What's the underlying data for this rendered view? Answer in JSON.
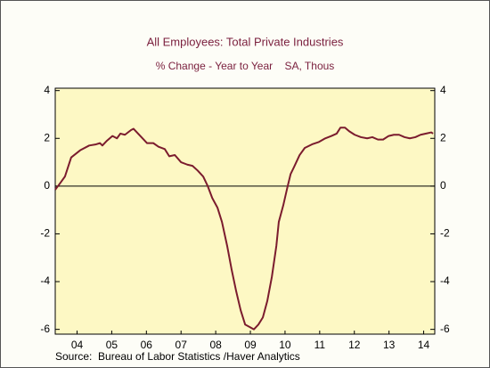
{
  "chart_data": {
    "type": "line",
    "title": "All Employees: Total Private Industries",
    "subtitle": "% Change - Year to Year    SA, Thous",
    "source": "Source:  Bureau of Labor Statistics /Haver Analytics",
    "color": "#7b1c2e",
    "x": [
      2003.87,
      2004.0,
      2004.15,
      2004.33,
      2004.59,
      2004.85,
      2005.05,
      2005.16,
      2005.23,
      2005.36,
      2005.52,
      2005.65,
      2005.75,
      2005.88,
      2006.06,
      2006.13,
      2006.26,
      2006.39,
      2006.52,
      2006.7,
      2006.85,
      2007.03,
      2007.16,
      2007.32,
      2007.5,
      2007.68,
      2007.83,
      2007.98,
      2008.14,
      2008.27,
      2008.4,
      2008.55,
      2008.68,
      2008.83,
      2008.96,
      2009.09,
      2009.22,
      2009.35,
      2009.48,
      2009.6,
      2009.73,
      2009.86,
      2009.99,
      2010.12,
      2010.25,
      2010.32,
      2010.45,
      2010.56,
      2010.66,
      2010.76,
      2010.92,
      2011.07,
      2011.28,
      2011.48,
      2011.66,
      2011.84,
      2011.99,
      2012.1,
      2012.23,
      2012.35,
      2012.51,
      2012.69,
      2012.87,
      2013.02,
      2013.18,
      2013.33,
      2013.49,
      2013.64,
      2013.79,
      2013.95,
      2014.1,
      2014.26,
      2014.41,
      2014.57,
      2014.72,
      2014.77
    ],
    "values": [
      -0.15,
      0.1,
      0.4,
      1.2,
      1.5,
      1.7,
      1.75,
      1.8,
      1.7,
      1.9,
      2.1,
      2.0,
      2.2,
      2.15,
      2.35,
      2.4,
      2.2,
      2.0,
      1.8,
      1.8,
      1.65,
      1.55,
      1.25,
      1.3,
      1.0,
      0.9,
      0.85,
      0.65,
      0.4,
      0.0,
      -0.5,
      -0.9,
      -1.5,
      -2.5,
      -3.5,
      -4.4,
      -5.2,
      -5.8,
      -5.9,
      -6.0,
      -5.8,
      -5.5,
      -4.8,
      -3.8,
      -2.5,
      -1.5,
      -0.8,
      -0.1,
      0.5,
      0.8,
      1.3,
      1.6,
      1.75,
      1.85,
      2.0,
      2.1,
      2.2,
      2.45,
      2.45,
      2.3,
      2.15,
      2.05,
      2.0,
      2.05,
      1.95,
      1.95,
      2.1,
      2.15,
      2.15,
      2.05,
      2.0,
      2.05,
      2.15,
      2.2,
      2.25,
      2.2
    ],
    "xlim": [
      2003.87,
      2014.82
    ],
    "xticks": [
      {
        "value": 2004.5,
        "label": "04"
      },
      {
        "value": 2005.5,
        "label": "05"
      },
      {
        "value": 2006.5,
        "label": "06"
      },
      {
        "value": 2007.5,
        "label": "07"
      },
      {
        "value": 2008.5,
        "label": "08"
      },
      {
        "value": 2009.5,
        "label": "09"
      },
      {
        "value": 2010.5,
        "label": "10"
      },
      {
        "value": 2011.5,
        "label": "11"
      },
      {
        "value": 2012.5,
        "label": "12"
      },
      {
        "value": 2013.5,
        "label": "13"
      },
      {
        "value": 2014.5,
        "label": "14"
      }
    ],
    "ylim": [
      -6.2,
      4.1
    ],
    "yticks": [
      -6,
      -4,
      -2,
      0,
      2,
      4
    ],
    "y2lim": [
      -6.2,
      4.1
    ],
    "y2ticks": [
      -6,
      -4,
      -2,
      0,
      2,
      4
    ],
    "zero_line": true,
    "plot_background": "#fdf8c4"
  }
}
